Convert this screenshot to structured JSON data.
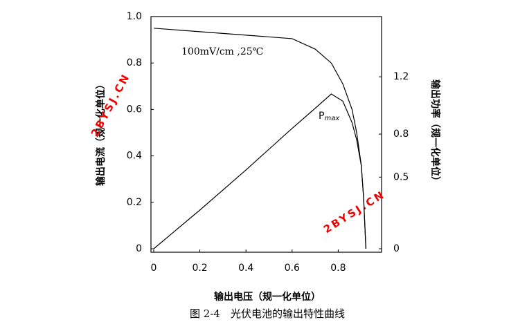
{
  "chart_data": {
    "type": "line",
    "x_label": "输出电压（规一化单位）",
    "y_label": "输出电流（规一化单位）",
    "y2_label": "输出功率（规一化单位）",
    "caption": "图 2-4　光伏电池的输出特性曲线",
    "annotation": "100mV/cm ,25℃",
    "pmax_label": "P",
    "pmax_sub": "max",
    "watermarks": [
      "2BYSJ.CN",
      "2BYSJ.CN"
    ],
    "x": [
      0,
      0.2,
      0.4,
      0.6,
      0.7,
      0.77,
      0.82,
      0.86,
      0.88,
      0.9,
      0.91,
      0.92
    ],
    "series": [
      {
        "name": "输出电流",
        "color": "#000000",
        "values": [
          0.95,
          0.935,
          0.92,
          0.905,
          0.86,
          0.8,
          0.71,
          0.6,
          0.5,
          0.36,
          0.22,
          0
        ]
      },
      {
        "name": "输出功率",
        "color": "#000000",
        "axis": "y2",
        "values": [
          0,
          0.27,
          0.55,
          0.84,
          0.98,
          1.08,
          1.03,
          0.88,
          0.76,
          0.58,
          0.36,
          0
        ]
      }
    ],
    "xlim": [
      0,
      1
    ],
    "xticks": [
      0,
      0.2,
      0.4,
      0.6,
      0.8
    ],
    "ylim": [
      0,
      1
    ],
    "yticks": [
      0,
      0.2,
      0.4,
      0.6,
      0.8,
      {
        "value": 1,
        "label": "1.0"
      }
    ],
    "y2lim": [
      0,
      1.62
    ],
    "y2ticks": [
      0,
      0.5,
      0.8,
      1.2
    ],
    "grid": false
  }
}
